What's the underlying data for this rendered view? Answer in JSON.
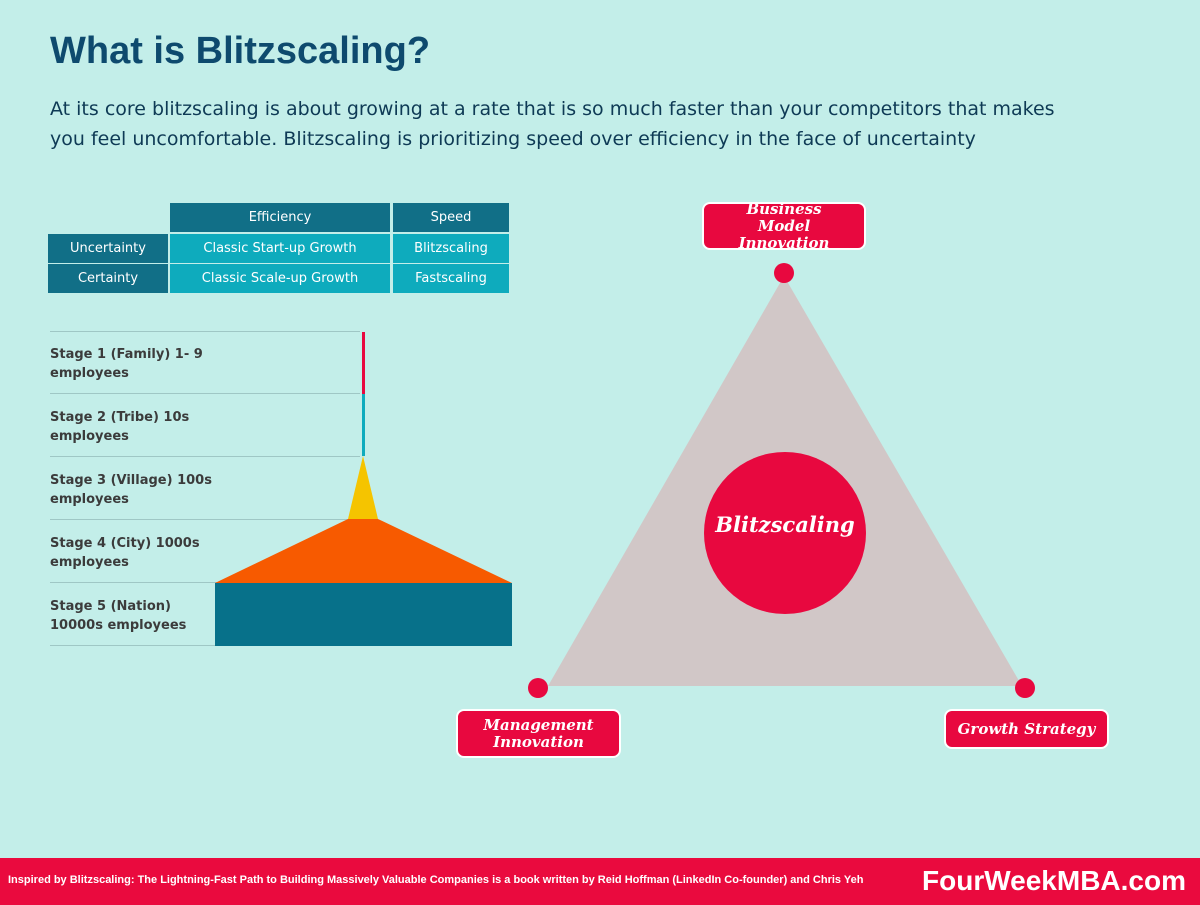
{
  "header": {
    "title": "What is Blitzscaling?",
    "subtitle": "At its core blitzscaling is about growing at a rate that is so much faster than your competitors that makes you feel uncomfortable. Blitzscaling is prioritizing speed over efficiency in the face of uncertainty"
  },
  "matrix": {
    "col_headers": [
      "Efficiency",
      "Speed"
    ],
    "rows": [
      {
        "label": "Uncertainty",
        "efficiency": "Classic Start-up Growth",
        "speed": "Blitzscaling"
      },
      {
        "label": "Certainty",
        "efficiency": "Classic Scale-up Growth",
        "speed": "Fastscaling"
      }
    ]
  },
  "stages": [
    {
      "label": "Stage 1 (Family) 1- 9 employees",
      "color": "#e8083f"
    },
    {
      "label": "Stage 2 (Tribe) 10s employees",
      "color": "#0eabbd"
    },
    {
      "label": "Stage 3 (Village) 100s employees",
      "color": "#f5c400"
    },
    {
      "label": "Stage 4 (City) 1000s employees",
      "color": "#f75a00"
    },
    {
      "label": "Stage 5 (Nation) 10000s employees",
      "color": "#07718a"
    }
  ],
  "triangle": {
    "center": "Blitzscaling",
    "top": "Business Model Innovation",
    "left": "Management Innovation",
    "right": "Growth Strategy",
    "accent": "#e8083f",
    "fill": "#d1c7c7"
  },
  "footer": {
    "credit": "Inspired by Blitzscaling: The Lightning-Fast Path to Building Massively Valuable Companies is a book written by Reid Hoffman (LinkedIn Co-founder) and Chris Yeh",
    "brand": "FourWeekMBA.com"
  }
}
